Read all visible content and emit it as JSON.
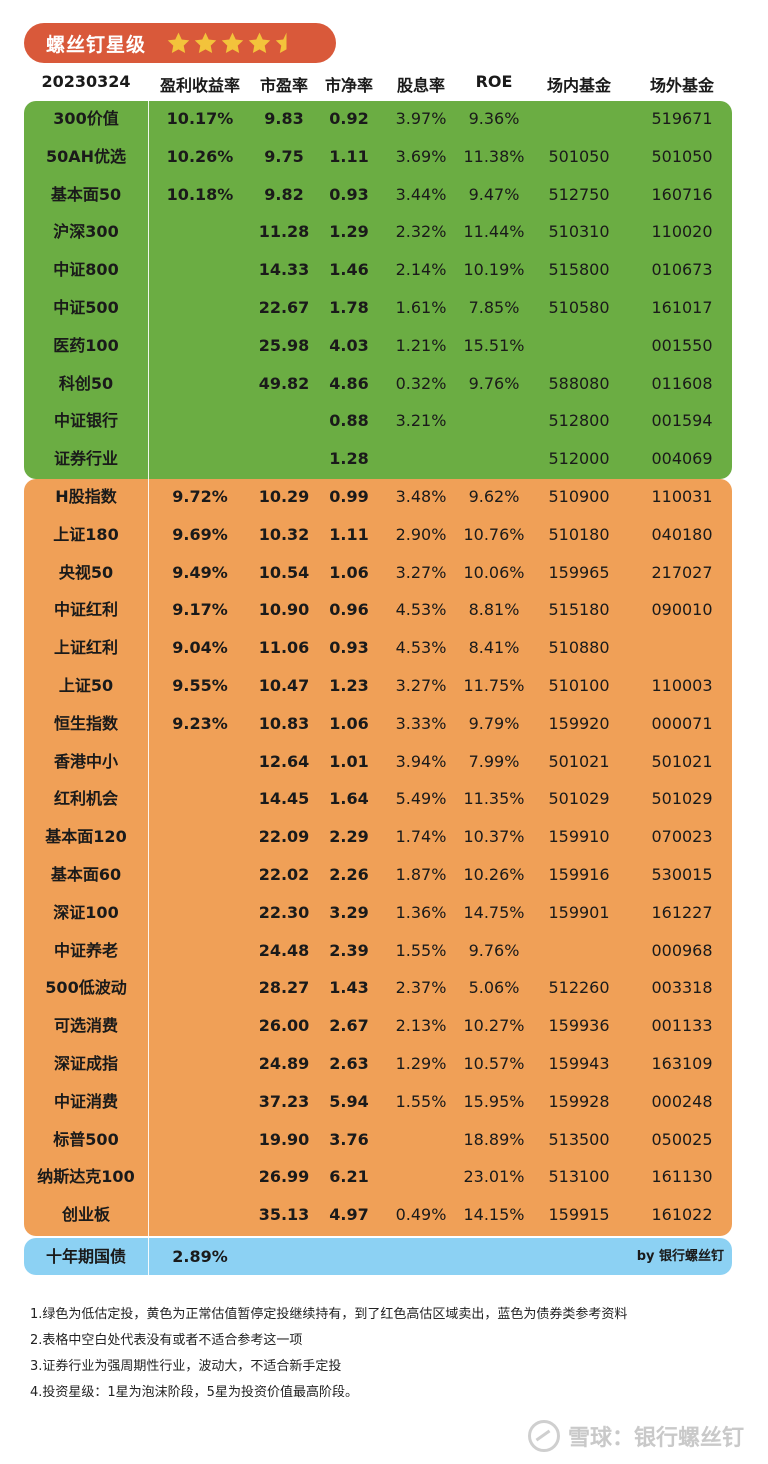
{
  "title": "螺丝钉星级",
  "rating": 4.5,
  "rating_max": 5,
  "colors": {
    "title_bg": "#d9593a",
    "star": "#f3c33b",
    "green": "#6bad43",
    "orange": "#f0a057",
    "blue": "#8cd1f3"
  },
  "header": {
    "date": "20230324",
    "earnings_yield": "盈利收益率",
    "pe": "市盈率",
    "pb": "市净率",
    "dividend": "股息率",
    "roe": "ROE",
    "onsite_fund": "场内基金",
    "offsite_fund": "场外基金"
  },
  "green_rows": [
    {
      "name": "300价值",
      "ey": "10.17%",
      "pe": "9.83",
      "pb": "0.92",
      "div": "3.97%",
      "roe": "9.36%",
      "fin": "",
      "fout": "519671"
    },
    {
      "name": "50AH优选",
      "ey": "10.26%",
      "pe": "9.75",
      "pb": "1.11",
      "div": "3.69%",
      "roe": "11.38%",
      "fin": "501050",
      "fout": "501050"
    },
    {
      "name": "基本面50",
      "ey": "10.18%",
      "pe": "9.82",
      "pb": "0.93",
      "div": "3.44%",
      "roe": "9.47%",
      "fin": "512750",
      "fout": "160716"
    },
    {
      "name": "沪深300",
      "ey": "",
      "pe": "11.28",
      "pb": "1.29",
      "div": "2.32%",
      "roe": "11.44%",
      "fin": "510310",
      "fout": "110020"
    },
    {
      "name": "中证800",
      "ey": "",
      "pe": "14.33",
      "pb": "1.46",
      "div": "2.14%",
      "roe": "10.19%",
      "fin": "515800",
      "fout": "010673"
    },
    {
      "name": "中证500",
      "ey": "",
      "pe": "22.67",
      "pb": "1.78",
      "div": "1.61%",
      "roe": "7.85%",
      "fin": "510580",
      "fout": "161017"
    },
    {
      "name": "医药100",
      "ey": "",
      "pe": "25.98",
      "pb": "4.03",
      "div": "1.21%",
      "roe": "15.51%",
      "fin": "",
      "fout": "001550"
    },
    {
      "name": "科创50",
      "ey": "",
      "pe": "49.82",
      "pb": "4.86",
      "div": "0.32%",
      "roe": "9.76%",
      "fin": "588080",
      "fout": "011608"
    },
    {
      "name": "中证银行",
      "ey": "",
      "pe": "",
      "pb": "0.88",
      "div": "3.21%",
      "roe": "",
      "fin": "512800",
      "fout": "001594"
    },
    {
      "name": "证券行业",
      "ey": "",
      "pe": "",
      "pb": "1.28",
      "div": "",
      "roe": "",
      "fin": "512000",
      "fout": "004069"
    }
  ],
  "orange_rows": [
    {
      "name": "H股指数",
      "ey": "9.72%",
      "pe": "10.29",
      "pb": "0.99",
      "div": "3.48%",
      "roe": "9.62%",
      "fin": "510900",
      "fout": "110031"
    },
    {
      "name": "上证180",
      "ey": "9.69%",
      "pe": "10.32",
      "pb": "1.11",
      "div": "2.90%",
      "roe": "10.76%",
      "fin": "510180",
      "fout": "040180"
    },
    {
      "name": "央视50",
      "ey": "9.49%",
      "pe": "10.54",
      "pb": "1.06",
      "div": "3.27%",
      "roe": "10.06%",
      "fin": "159965",
      "fout": "217027"
    },
    {
      "name": "中证红利",
      "ey": "9.17%",
      "pe": "10.90",
      "pb": "0.96",
      "div": "4.53%",
      "roe": "8.81%",
      "fin": "515180",
      "fout": "090010"
    },
    {
      "name": "上证红利",
      "ey": "9.04%",
      "pe": "11.06",
      "pb": "0.93",
      "div": "4.53%",
      "roe": "8.41%",
      "fin": "510880",
      "fout": ""
    },
    {
      "name": "上证50",
      "ey": "9.55%",
      "pe": "10.47",
      "pb": "1.23",
      "div": "3.27%",
      "roe": "11.75%",
      "fin": "510100",
      "fout": "110003"
    },
    {
      "name": "恒生指数",
      "ey": "9.23%",
      "pe": "10.83",
      "pb": "1.06",
      "div": "3.33%",
      "roe": "9.79%",
      "fin": "159920",
      "fout": "000071"
    },
    {
      "name": "香港中小",
      "ey": "",
      "pe": "12.64",
      "pb": "1.01",
      "div": "3.94%",
      "roe": "7.99%",
      "fin": "501021",
      "fout": "501021"
    },
    {
      "name": "红利机会",
      "ey": "",
      "pe": "14.45",
      "pb": "1.64",
      "div": "5.49%",
      "roe": "11.35%",
      "fin": "501029",
      "fout": "501029"
    },
    {
      "name": "基本面120",
      "ey": "",
      "pe": "22.09",
      "pb": "2.29",
      "div": "1.74%",
      "roe": "10.37%",
      "fin": "159910",
      "fout": "070023"
    },
    {
      "name": "基本面60",
      "ey": "",
      "pe": "22.02",
      "pb": "2.26",
      "div": "1.87%",
      "roe": "10.26%",
      "fin": "159916",
      "fout": "530015"
    },
    {
      "name": "深证100",
      "ey": "",
      "pe": "22.30",
      "pb": "3.29",
      "div": "1.36%",
      "roe": "14.75%",
      "fin": "159901",
      "fout": "161227"
    },
    {
      "name": "中证养老",
      "ey": "",
      "pe": "24.48",
      "pb": "2.39",
      "div": "1.55%",
      "roe": "9.76%",
      "fin": "",
      "fout": "000968"
    },
    {
      "name": "500低波动",
      "ey": "",
      "pe": "28.27",
      "pb": "1.43",
      "div": "2.37%",
      "roe": "5.06%",
      "fin": "512260",
      "fout": "003318"
    },
    {
      "name": "可选消费",
      "ey": "",
      "pe": "26.00",
      "pb": "2.67",
      "div": "2.13%",
      "roe": "10.27%",
      "fin": "159936",
      "fout": "001133"
    },
    {
      "name": "深证成指",
      "ey": "",
      "pe": "24.89",
      "pb": "2.63",
      "div": "1.29%",
      "roe": "10.57%",
      "fin": "159943",
      "fout": "163109"
    },
    {
      "name": "中证消费",
      "ey": "",
      "pe": "37.23",
      "pb": "5.94",
      "div": "1.55%",
      "roe": "15.95%",
      "fin": "159928",
      "fout": "000248"
    },
    {
      "name": "标普500",
      "ey": "",
      "pe": "19.90",
      "pb": "3.76",
      "div": "",
      "roe": "18.89%",
      "fin": "513500",
      "fout": "050025"
    },
    {
      "name": "纳斯达克100",
      "ey": "",
      "pe": "26.99",
      "pb": "6.21",
      "div": "",
      "roe": "23.01%",
      "fin": "513100",
      "fout": "161130"
    },
    {
      "name": "创业板",
      "ey": "",
      "pe": "35.13",
      "pb": "4.97",
      "div": "0.49%",
      "roe": "14.15%",
      "fin": "159915",
      "fout": "161022"
    }
  ],
  "bond_row": {
    "name": "十年期国债",
    "ey": "2.89%",
    "by": "by 银行螺丝钉"
  },
  "notes": [
    "1.绿色为低估定投，黄色为正常估值暂停定投继续持有，到了红色高估区域卖出，蓝色为债券类参考资料",
    "2.表格中空白处代表没有或者不适合参考这一项",
    "3.证券行业为强周期性行业，波动大，不适合新手定投",
    "4.投资星级：1星为泡沫阶段，5星为投资价值最高阶段。"
  ],
  "watermark": "雪球：银行螺丝钉"
}
